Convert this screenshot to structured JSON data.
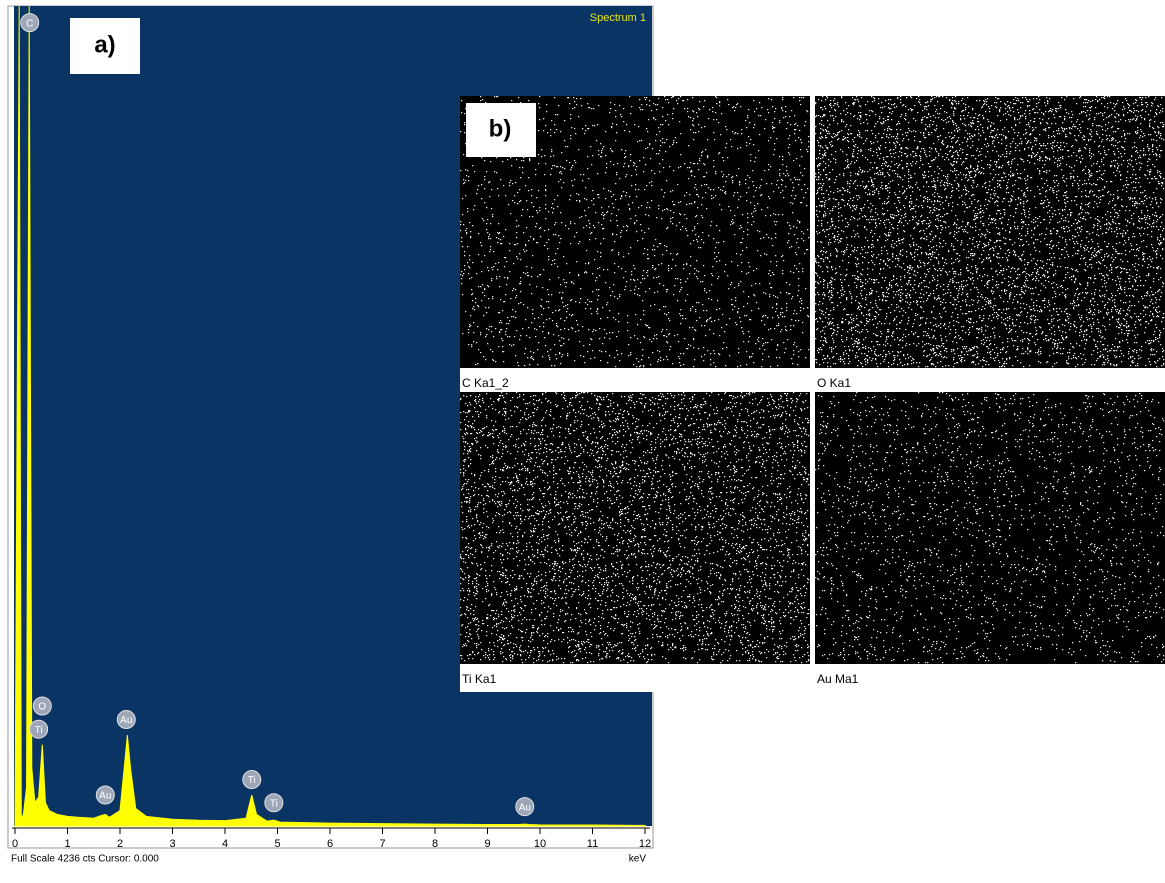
{
  "chart_data": {
    "type": "area",
    "title": "Spectrum 1",
    "panel_label": "a)",
    "x_label": "keV",
    "status": "Full Scale 4236 cts Cursor: 0.000",
    "color": "#ffff00",
    "x": [
      0,
      0.08,
      0.12,
      0.16,
      0.22,
      0.27,
      0.32,
      0.38,
      0.45,
      0.52,
      0.58,
      0.65,
      0.8,
      1.0,
      1.2,
      1.5,
      1.65,
      1.72,
      1.8,
      2.0,
      2.08,
      2.14,
      2.2,
      2.3,
      2.5,
      3.0,
      3.5,
      4.0,
      4.4,
      4.51,
      4.6,
      4.8,
      4.93,
      5.05,
      6,
      7,
      8,
      9,
      9.6,
      9.71,
      9.8,
      10,
      11,
      12
    ],
    "values": [
      0,
      4236,
      40,
      60,
      200,
      4236,
      300,
      120,
      150,
      420,
      120,
      80,
      60,
      50,
      45,
      40,
      55,
      60,
      45,
      80,
      300,
      470,
      300,
      90,
      50,
      35,
      30,
      28,
      40,
      160,
      60,
      25,
      30,
      20,
      15,
      12,
      10,
      8,
      8,
      10,
      8,
      6,
      5,
      3
    ],
    "xlim": [
      0,
      12
    ],
    "ylim": [
      0,
      4236
    ],
    "xticks": [
      0,
      1,
      2,
      3,
      4,
      5,
      6,
      7,
      8,
      9,
      10,
      11,
      12
    ],
    "peak_labels": [
      {
        "text": "C",
        "x": 0.28,
        "y": 4150
      },
      {
        "text": "O",
        "x": 0.52,
        "y": 620
      },
      {
        "text": "Ti",
        "x": 0.45,
        "y": 500
      },
      {
        "text": "Au",
        "x": 2.12,
        "y": 550
      },
      {
        "text": "Au",
        "x": 1.72,
        "y": 160
      },
      {
        "text": "Ti",
        "x": 4.51,
        "y": 240
      },
      {
        "text": "Ti",
        "x": 4.93,
        "y": 120
      },
      {
        "text": "Au",
        "x": 9.71,
        "y": 100
      }
    ]
  },
  "maps": {
    "panel_label": "b)",
    "items": [
      "C Ka1_2",
      "O Ka1",
      "Ti Ka1",
      "Au Ma1"
    ]
  }
}
